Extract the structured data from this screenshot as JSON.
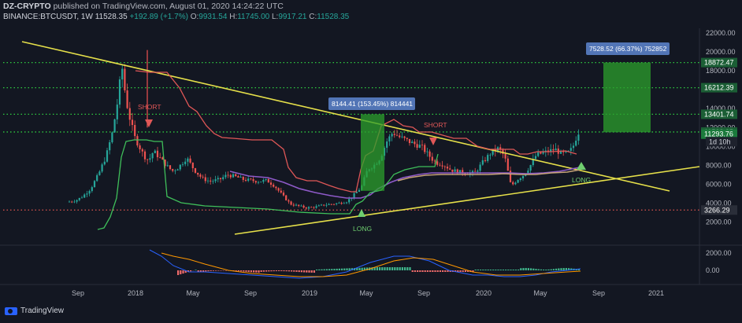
{
  "header": {
    "author": "DZ-CRYPTO",
    "published": "published on TradingView.com, August 01, 2020 14:24:22 UTC",
    "symbol": "BINANCE:BTCUSDT, 1W",
    "price": "11528.35",
    "change": "+192.89 (+1.7%)",
    "o_label": "O:",
    "o_val": "9931.54",
    "h_label": "H:",
    "h_val": "11745.00",
    "l_label": "L:",
    "l_val": "9917.21",
    "c_label": "C:",
    "c_val": "11528.35"
  },
  "footer": {
    "logo_text": "TradingView"
  },
  "colors": {
    "background": "#131722",
    "up": "#26a69a",
    "down": "#ef5350",
    "trendline": "#e6e04a",
    "level": "#2ecc40",
    "red_line": "#e05757",
    "purple_line": "#8e5ac8",
    "tan_line": "#c8a478",
    "green_line": "#3fbf5a",
    "measure_box": "#2ca02c",
    "label_box": "#5a7fc6"
  },
  "chart_data": {
    "type": "candlestick",
    "price_axis": {
      "ticks": [
        22000,
        20000,
        18000,
        16000,
        14000,
        12000,
        10000,
        8000,
        6000,
        4000,
        2000
      ],
      "tick_labels": [
        "22000.00",
        "20000.00",
        "18000.00",
        "16000.00",
        "14000.00",
        "12000.00",
        "10000.00",
        "8000.00",
        "6000.00",
        "4000.00",
        "2000.00"
      ],
      "range": [
        2000,
        22000
      ]
    },
    "levels": [
      {
        "value": 18872.47,
        "label": "18872.47",
        "style": "dotted-green"
      },
      {
        "value": 16212.39,
        "label": "16212.39",
        "style": "dotted-green"
      },
      {
        "value": 13401.74,
        "label": "13401.74",
        "style": "dotted-green"
      },
      {
        "value": 11528.35,
        "label": "11528.35",
        "style": "dotted-green"
      },
      {
        "value": 11293.76,
        "label": "11293.76",
        "style": "price-tag"
      },
      {
        "value": 3266.29,
        "label": "3266.29",
        "style": "dotted-red"
      }
    ],
    "price_tags": [
      {
        "value": 11528.35,
        "label": "11528.35"
      },
      {
        "value": 10500,
        "label": "1d 10h"
      }
    ],
    "x_axis": {
      "ticks": [
        "Sep",
        "2018",
        "May",
        "Sep",
        "2019",
        "May",
        "Sep",
        "2020",
        "May",
        "Sep",
        "2021"
      ]
    },
    "annotations": [
      {
        "text": "SHORT",
        "date": "2018-01"
      },
      {
        "text": "SHORT",
        "date": "2019-09"
      },
      {
        "text": "LONG",
        "date": "2019-04"
      },
      {
        "text": "LONG",
        "date": "2020-07"
      }
    ],
    "measures": [
      {
        "label": "8144.41 (153.45%) 814441",
        "from": 5300,
        "to": 13400
      },
      {
        "label": "7528.52 (66.37%) 752852",
        "from": 11500,
        "to": 18872.47
      }
    ],
    "macd_axis": {
      "ticks": [
        2000,
        0
      ],
      "tick_labels": [
        "2000.00",
        "0.00"
      ]
    }
  }
}
